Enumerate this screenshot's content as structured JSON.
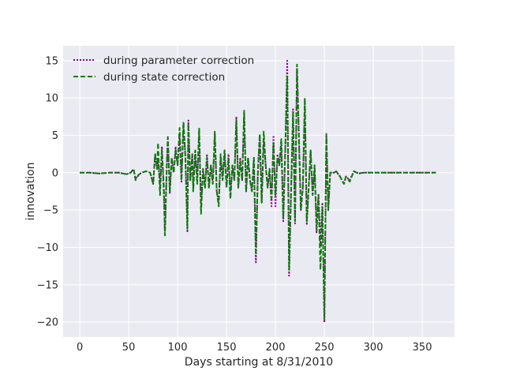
{
  "chart_data": {
    "type": "line",
    "title": "",
    "xlabel": "Days starting at 8/31/2010",
    "ylabel": "innovation",
    "xlim": [
      -17,
      383
    ],
    "ylim": [
      -22,
      17
    ],
    "xticks": [
      0,
      50,
      100,
      150,
      200,
      250,
      300,
      350
    ],
    "yticks": [
      -20,
      -15,
      -10,
      -5,
      0,
      5,
      10,
      15
    ],
    "xtick_labels": [
      "0",
      "50",
      "100",
      "150",
      "200",
      "250",
      "300",
      "350"
    ],
    "ytick_labels": [
      "−20",
      "−15",
      "−10",
      "−5",
      "0",
      "5",
      "10",
      "15"
    ],
    "grid": true,
    "legend_position": "upper-left",
    "series": [
      {
        "name": "during parameter correction",
        "color": "#800080",
        "style": "dotted",
        "points": [
          [
            0,
            0
          ],
          [
            10,
            0
          ],
          [
            20,
            -0.1
          ],
          [
            30,
            0
          ],
          [
            40,
            0
          ],
          [
            48,
            -0.2
          ],
          [
            52,
            0
          ],
          [
            55,
            0.5
          ],
          [
            57,
            -0.8
          ],
          [
            60,
            -0.3
          ],
          [
            63,
            0
          ],
          [
            68,
            0.2
          ],
          [
            72,
            0
          ],
          [
            75,
            -1.5
          ],
          [
            77,
            2.5
          ],
          [
            79,
            0.5
          ],
          [
            80,
            2
          ],
          [
            82,
            -2
          ],
          [
            84,
            3.5
          ],
          [
            86,
            -3
          ],
          [
            87,
            -8.2
          ],
          [
            89,
            1
          ],
          [
            90,
            4.5
          ],
          [
            92,
            -2.8
          ],
          [
            94,
            2
          ],
          [
            96,
            0
          ],
          [
            98,
            3.5
          ],
          [
            100,
            1
          ],
          [
            102,
            5
          ],
          [
            104,
            -1.2
          ],
          [
            106,
            6.5
          ],
          [
            108,
            2
          ],
          [
            110,
            -8
          ],
          [
            111,
            7
          ],
          [
            113,
            -1
          ],
          [
            115,
            2.5
          ],
          [
            116,
            -2
          ],
          [
            118,
            3
          ],
          [
            120,
            -1
          ],
          [
            122,
            5.5
          ],
          [
            124,
            -4.5
          ],
          [
            126,
            0.5
          ],
          [
            128,
            -2
          ],
          [
            130,
            2.5
          ],
          [
            132,
            -2
          ],
          [
            134,
            1
          ],
          [
            136,
            -1.5
          ],
          [
            138,
            5.2
          ],
          [
            140,
            -2.5
          ],
          [
            142,
            -4
          ],
          [
            144,
            2
          ],
          [
            146,
            -1
          ],
          [
            148,
            3
          ],
          [
            150,
            -2
          ],
          [
            152,
            2.5
          ],
          [
            154,
            -3
          ],
          [
            156,
            1
          ],
          [
            158,
            -1
          ],
          [
            160,
            7.5
          ],
          [
            162,
            -2
          ],
          [
            164,
            2
          ],
          [
            166,
            -1
          ],
          [
            168,
            8
          ],
          [
            170,
            -2.5
          ],
          [
            172,
            2
          ],
          [
            174,
            -1
          ],
          [
            176,
            -2.5
          ],
          [
            178,
            2
          ],
          [
            180,
            -12
          ],
          [
            182,
            0
          ],
          [
            184,
            5
          ],
          [
            186,
            -4
          ],
          [
            188,
            4.5
          ],
          [
            190,
            1
          ],
          [
            192,
            -2
          ],
          [
            194,
            0.5
          ],
          [
            196,
            -4.5
          ],
          [
            198,
            5
          ],
          [
            200,
            -4.5
          ],
          [
            202,
            2.5
          ],
          [
            204,
            1
          ],
          [
            206,
            4
          ],
          [
            208,
            -6.5
          ],
          [
            210,
            3
          ],
          [
            212,
            15
          ],
          [
            214,
            -13.8
          ],
          [
            216,
            -2.5
          ],
          [
            218,
            8.5
          ],
          [
            220,
            -6.8
          ],
          [
            222,
            14
          ],
          [
            224,
            5
          ],
          [
            226,
            -5
          ],
          [
            228,
            -2
          ],
          [
            230,
            9.5
          ],
          [
            232,
            -7
          ],
          [
            234,
            -2
          ],
          [
            236,
            3
          ],
          [
            238,
            -3
          ],
          [
            240,
            1
          ],
          [
            242,
            -8
          ],
          [
            244,
            -2.8
          ],
          [
            246,
            -9.5
          ],
          [
            248,
            -4
          ],
          [
            250,
            -20
          ],
          [
            252,
            5
          ],
          [
            254,
            -5
          ],
          [
            256,
            0
          ],
          [
            260,
            0
          ],
          [
            262,
            0.2
          ],
          [
            266,
            -0.5
          ],
          [
            270,
            -1.5
          ],
          [
            272,
            -0.5
          ],
          [
            276,
            -1
          ],
          [
            280,
            0.2
          ],
          [
            285,
            -0.1
          ],
          [
            290,
            0
          ],
          [
            300,
            0
          ],
          [
            310,
            0
          ],
          [
            320,
            0
          ],
          [
            330,
            0
          ],
          [
            340,
            0
          ],
          [
            350,
            0
          ],
          [
            364,
            0
          ]
        ]
      },
      {
        "name": "during state correction",
        "color": "#008000",
        "style": "dashed",
        "points": [
          [
            0,
            0
          ],
          [
            10,
            0
          ],
          [
            20,
            -0.1
          ],
          [
            30,
            0
          ],
          [
            40,
            0
          ],
          [
            48,
            -0.2
          ],
          [
            52,
            0
          ],
          [
            55,
            0.5
          ],
          [
            57,
            -1
          ],
          [
            60,
            -0.3
          ],
          [
            63,
            0
          ],
          [
            68,
            0.2
          ],
          [
            72,
            0
          ],
          [
            75,
            -1.5
          ],
          [
            77,
            2.5
          ],
          [
            79,
            0.5
          ],
          [
            80,
            4
          ],
          [
            82,
            -3
          ],
          [
            84,
            3
          ],
          [
            86,
            -2
          ],
          [
            87,
            -8.4
          ],
          [
            89,
            1
          ],
          [
            90,
            4.8
          ],
          [
            92,
            -2.5
          ],
          [
            94,
            2
          ],
          [
            96,
            0
          ],
          [
            98,
            3
          ],
          [
            100,
            1
          ],
          [
            102,
            6
          ],
          [
            104,
            -1
          ],
          [
            106,
            6.8
          ],
          [
            108,
            2
          ],
          [
            110,
            -7.5
          ],
          [
            111,
            6.5
          ],
          [
            113,
            -1
          ],
          [
            115,
            2.5
          ],
          [
            116,
            -2.5
          ],
          [
            118,
            3
          ],
          [
            120,
            -1.5
          ],
          [
            122,
            6
          ],
          [
            124,
            -5.5
          ],
          [
            126,
            0.5
          ],
          [
            128,
            -2
          ],
          [
            130,
            2
          ],
          [
            132,
            -2
          ],
          [
            134,
            1
          ],
          [
            136,
            -1.5
          ],
          [
            138,
            5.5
          ],
          [
            140,
            -2.5
          ],
          [
            142,
            -4.5
          ],
          [
            144,
            2.5
          ],
          [
            146,
            -1
          ],
          [
            148,
            3
          ],
          [
            150,
            -2
          ],
          [
            152,
            2
          ],
          [
            154,
            -3.5
          ],
          [
            156,
            1
          ],
          [
            158,
            -1
          ],
          [
            160,
            7
          ],
          [
            162,
            -2
          ],
          [
            164,
            1.5
          ],
          [
            166,
            -1
          ],
          [
            168,
            8.3
          ],
          [
            170,
            -2.5
          ],
          [
            172,
            2
          ],
          [
            174,
            -1
          ],
          [
            176,
            -2.5
          ],
          [
            178,
            2
          ],
          [
            180,
            -11
          ],
          [
            182,
            0
          ],
          [
            184,
            5.2
          ],
          [
            186,
            -4
          ],
          [
            188,
            5.5
          ],
          [
            190,
            1
          ],
          [
            192,
            -2
          ],
          [
            194,
            0.5
          ],
          [
            196,
            -3.5
          ],
          [
            198,
            4
          ],
          [
            200,
            -3
          ],
          [
            202,
            2
          ],
          [
            204,
            1
          ],
          [
            206,
            4.5
          ],
          [
            208,
            -6
          ],
          [
            210,
            3
          ],
          [
            212,
            13
          ],
          [
            214,
            -13
          ],
          [
            216,
            -2.5
          ],
          [
            218,
            8
          ],
          [
            220,
            -6.5
          ],
          [
            222,
            14.5
          ],
          [
            224,
            4.5
          ],
          [
            226,
            -5
          ],
          [
            228,
            -2
          ],
          [
            230,
            10
          ],
          [
            232,
            -6.5
          ],
          [
            234,
            -2
          ],
          [
            236,
            3
          ],
          [
            238,
            -3
          ],
          [
            240,
            1
          ],
          [
            242,
            -7.5
          ],
          [
            244,
            -3
          ],
          [
            246,
            -13
          ],
          [
            248,
            -4.5
          ],
          [
            250,
            -19.5
          ],
          [
            252,
            5.2
          ],
          [
            254,
            -5
          ],
          [
            256,
            0
          ],
          [
            260,
            0
          ],
          [
            262,
            0.2
          ],
          [
            266,
            -0.5
          ],
          [
            270,
            -1.5
          ],
          [
            272,
            -0.5
          ],
          [
            276,
            -1.2
          ],
          [
            280,
            0.2
          ],
          [
            285,
            -0.1
          ],
          [
            290,
            0
          ],
          [
            300,
            0
          ],
          [
            310,
            0
          ],
          [
            320,
            0
          ],
          [
            330,
            0
          ],
          [
            340,
            0
          ],
          [
            350,
            0
          ],
          [
            364,
            0
          ]
        ]
      }
    ]
  }
}
